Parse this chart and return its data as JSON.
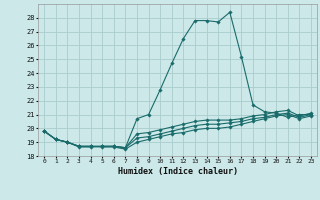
{
  "xlabel": "Humidex (Indice chaleur)",
  "background_color": "#cce8e8",
  "grid_color": "#aacccc",
  "line_color": "#1a6b6b",
  "xlim": [
    -0.5,
    23.5
  ],
  "ylim": [
    18,
    29
  ],
  "yticks": [
    18,
    19,
    20,
    21,
    22,
    23,
    24,
    25,
    26,
    27,
    28
  ],
  "xticks": [
    0,
    1,
    2,
    3,
    4,
    5,
    6,
    7,
    8,
    9,
    10,
    11,
    12,
    13,
    14,
    15,
    16,
    17,
    18,
    19,
    20,
    21,
    22,
    23
  ],
  "series": [
    {
      "x": [
        0,
        1,
        2,
        3,
        4,
        5,
        6,
        7,
        8,
        9,
        10,
        11,
        12,
        13,
        14,
        15,
        16,
        17,
        18,
        19,
        20,
        21,
        22,
        23
      ],
      "y": [
        19.8,
        19.2,
        19.0,
        18.65,
        18.65,
        18.7,
        18.7,
        18.6,
        20.7,
        21.0,
        22.8,
        24.7,
        26.5,
        27.8,
        27.8,
        27.7,
        28.4,
        25.2,
        21.7,
        21.2,
        21.1,
        20.8,
        21.0,
        21.0
      ]
    },
    {
      "x": [
        0,
        1,
        2,
        3,
        4,
        5,
        6,
        7,
        8,
        9,
        10,
        11,
        12,
        13,
        14,
        15,
        16,
        17,
        18,
        19,
        20,
        21,
        22,
        23
      ],
      "y": [
        19.8,
        19.2,
        19.0,
        18.7,
        18.7,
        18.7,
        18.7,
        18.6,
        19.6,
        19.7,
        19.9,
        20.1,
        20.3,
        20.5,
        20.6,
        20.6,
        20.6,
        20.7,
        20.9,
        21.0,
        21.2,
        21.3,
        20.9,
        21.1
      ]
    },
    {
      "x": [
        0,
        1,
        2,
        3,
        4,
        5,
        6,
        7,
        8,
        9,
        10,
        11,
        12,
        13,
        14,
        15,
        16,
        17,
        18,
        19,
        20,
        21,
        22,
        23
      ],
      "y": [
        19.8,
        19.2,
        19.0,
        18.7,
        18.7,
        18.7,
        18.7,
        18.6,
        19.3,
        19.4,
        19.6,
        19.8,
        20.0,
        20.2,
        20.3,
        20.3,
        20.4,
        20.5,
        20.7,
        20.8,
        21.0,
        21.1,
        20.8,
        21.0
      ]
    },
    {
      "x": [
        0,
        1,
        2,
        3,
        4,
        5,
        6,
        7,
        8,
        9,
        10,
        11,
        12,
        13,
        14,
        15,
        16,
        17,
        18,
        19,
        20,
        21,
        22,
        23
      ],
      "y": [
        19.8,
        19.2,
        19.0,
        18.7,
        18.7,
        18.65,
        18.65,
        18.5,
        19.0,
        19.2,
        19.4,
        19.6,
        19.7,
        19.9,
        20.0,
        20.0,
        20.1,
        20.3,
        20.5,
        20.7,
        20.9,
        21.0,
        20.7,
        20.9
      ]
    }
  ]
}
